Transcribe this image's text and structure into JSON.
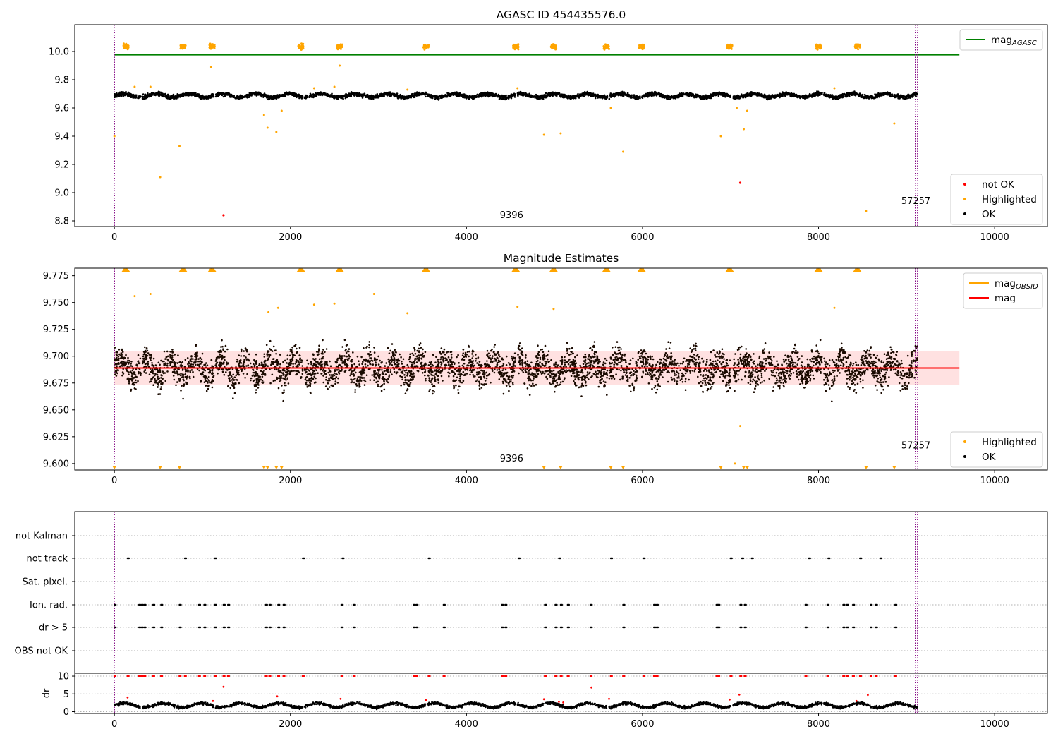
{
  "chart_data": [
    {
      "type": "scatter",
      "title": "AGASC ID 454435576.0",
      "xlim": [
        -450,
        10600
      ],
      "ylim": [
        8.76,
        10.19
      ],
      "x_ticks": [
        0,
        2000,
        4000,
        6000,
        8000,
        10000
      ],
      "x_tick_labels": [
        "0",
        "2000",
        "4000",
        "6000",
        "8000",
        "10000"
      ],
      "y_ticks": [
        8.8,
        9.0,
        9.2,
        9.4,
        9.6,
        9.8,
        10.0
      ],
      "y_tick_labels": [
        "8.8",
        "9.0",
        "9.2",
        "9.4",
        "9.6",
        "9.8",
        "10.0"
      ],
      "vlines": [
        0,
        9100,
        9125
      ],
      "annotations": [
        {
          "text": "9396",
          "x": 4380,
          "y": 8.82
        },
        {
          "text": "57257",
          "x": 8940,
          "y": 8.92
        }
      ],
      "hlines": [
        {
          "name": "mag_AGASC",
          "y": 9.977,
          "x0": 0,
          "x1": 9600,
          "color": "#008000"
        }
      ],
      "legend_upper": {
        "entries": [
          {
            "name": "mag",
            "sub": "AGASC",
            "color": "#008000"
          }
        ],
        "placement": "top-right"
      },
      "legend_lower": {
        "entries": [
          {
            "name": "not OK",
            "color": "#ff0000"
          },
          {
            "name": "Highlighted",
            "color": "#ffa500"
          },
          {
            "name": "OK",
            "color": "#000000"
          }
        ],
        "placement": "bottom-right"
      },
      "series": [
        {
          "name": "OK",
          "color": "#000000",
          "description_band": {
            "x0": 0,
            "x1": 9120,
            "center": 9.688,
            "spread": 0.018
          }
        },
        {
          "name": "Highlighted",
          "color": "#ffa500",
          "clusters_x": [
            130,
            780,
            1110,
            2120,
            2560,
            3540,
            4560,
            4990,
            5590,
            5990,
            6990,
            8000,
            8440
          ],
          "cluster_y": 10.035,
          "points": [
            [
              0,
              9.4
            ],
            [
              520,
              9.11
            ],
            [
              740,
              9.33
            ],
            [
              1100,
              9.89
            ],
            [
              2560,
              9.9
            ],
            [
              1700,
              9.55
            ],
            [
              1740,
              9.46
            ],
            [
              1840,
              9.43
            ],
            [
              1900,
              9.58
            ],
            [
              4880,
              9.41
            ],
            [
              5070,
              9.42
            ],
            [
              5640,
              9.6
            ],
            [
              5780,
              9.29
            ],
            [
              6890,
              9.4
            ],
            [
              7070,
              9.6
            ],
            [
              7150,
              9.45
            ],
            [
              7190,
              9.58
            ],
            [
              8540,
              8.87
            ],
            [
              8860,
              9.49
            ],
            [
              230,
              9.75
            ],
            [
              410,
              9.75
            ],
            [
              2270,
              9.74
            ],
            [
              2500,
              9.75
            ],
            [
              3330,
              9.73
            ],
            [
              4580,
              9.74
            ],
            [
              8180,
              9.74
            ]
          ]
        },
        {
          "name": "not OK",
          "color": "#ff0000",
          "points": [
            [
              1240,
              8.84
            ],
            [
              7110,
              9.07
            ]
          ]
        }
      ]
    },
    {
      "type": "scatter",
      "title": "Magnitude Estimates",
      "xlim": [
        -450,
        10600
      ],
      "ylim": [
        9.594,
        9.782
      ],
      "x_ticks": [
        0,
        2000,
        4000,
        6000,
        8000,
        10000
      ],
      "x_tick_labels": [
        "0",
        "2000",
        "4000",
        "6000",
        "8000",
        "10000"
      ],
      "y_ticks": [
        9.6,
        9.625,
        9.65,
        9.675,
        9.7,
        9.725,
        9.75,
        9.775
      ],
      "y_tick_labels": [
        "9.600",
        "9.625",
        "9.650",
        "9.675",
        "9.700",
        "9.725",
        "9.750",
        "9.775"
      ],
      "vlines": [
        0,
        9100,
        9125
      ],
      "annotations": [
        {
          "text": "9396",
          "x": 4380,
          "y": 9.602
        },
        {
          "text": "57257",
          "x": 8940,
          "y": 9.614
        }
      ],
      "hlines": [
        {
          "name": "mag",
          "y": 9.689,
          "x0": 0,
          "x1": 9600,
          "color": "#ff0000"
        }
      ],
      "band": {
        "y0": 9.673,
        "y1": 9.705,
        "x0": 0,
        "x1": 9600,
        "color": "#ffc8c8"
      },
      "legend_upper": {
        "entries": [
          {
            "name": "mag",
            "sub": "OBSID",
            "color": "#ffa500"
          },
          {
            "name": "mag",
            "sub": "",
            "color": "#ff0000"
          }
        ],
        "placement": "top-right"
      },
      "legend_lower": {
        "entries": [
          {
            "name": "Highlighted",
            "color": "#ffa500"
          },
          {
            "name": "OK",
            "color": "#000000"
          }
        ],
        "placement": "bottom-right"
      },
      "series": [
        {
          "name": "OK",
          "color": "#000000",
          "description_band": {
            "x0": 0,
            "x1": 9120,
            "center": 9.689,
            "spread": 0.017
          }
        },
        {
          "name": "Highlighted",
          "color": "#ffa500",
          "top_markers_x": [
            130,
            780,
            1110,
            2120,
            2560,
            3540,
            4560,
            4990,
            5590,
            5990,
            6990,
            8000,
            8440
          ],
          "bottom_markers_x": [
            0,
            520,
            740,
            1700,
            1740,
            1840,
            1900,
            4880,
            5070,
            5640,
            5780,
            6890,
            7150,
            7190,
            8540,
            8860
          ],
          "points": [
            [
              230,
              9.756
            ],
            [
              410,
              9.758
            ],
            [
              2270,
              9.748
            ],
            [
              2500,
              9.749
            ],
            [
              2950,
              9.758
            ],
            [
              3330,
              9.74
            ],
            [
              4580,
              9.746
            ],
            [
              4990,
              9.744
            ],
            [
              8180,
              9.745
            ],
            [
              1750,
              9.741
            ],
            [
              1860,
              9.745
            ],
            [
              7110,
              9.635
            ],
            [
              7050,
              9.6
            ]
          ]
        }
      ]
    },
    {
      "type": "scatter",
      "title": "",
      "xlim": [
        -450,
        10600
      ],
      "ylim": [
        -0.5,
        10.8
      ],
      "x_ticks": [
        0,
        2000,
        4000,
        6000,
        8000,
        10000
      ],
      "x_tick_labels": [
        "0",
        "2000",
        "4000",
        "6000",
        "8000",
        "10000"
      ],
      "y_ticks": [
        0,
        5,
        10
      ],
      "y_tick_labels": [
        "0",
        "5",
        "10"
      ],
      "ylabel": "dr",
      "vlines": [
        0,
        9100,
        9125
      ],
      "flag_rows": [
        "not Kalman",
        "not track",
        "Sat. pixel.",
        "Ion. rad.",
        "dr > 5",
        "OBS not OK"
      ],
      "flag_x": {
        "not Kalman": [],
        "not track": [
          150,
          800,
          1140,
          2140,
          2590,
          3570,
          4590,
          5050,
          5640,
          6010,
          7000,
          7130,
          7240,
          7890,
          8110,
          8470,
          8700
        ],
        "Sat. pixel.": [],
        "Ion. rad.": [
          0,
          280,
          310,
          340,
          440,
          530,
          740,
          960,
          1020,
          1140,
          1240,
          1290,
          1720,
          1760,
          1860,
          1920,
          2580,
          2720,
          3400,
          3430,
          3740,
          4400,
          4440,
          4890,
          5010,
          5070,
          5150,
          5410,
          5780,
          6130,
          6160,
          6840,
          6860,
          7110,
          7160,
          7850,
          8100,
          8280,
          8320,
          8390,
          8590,
          8650,
          8870
        ],
        "dr > 5": [
          0,
          280,
          310,
          340,
          440,
          530,
          740,
          960,
          1020,
          1140,
          1240,
          1290,
          1720,
          1760,
          1860,
          1920,
          2580,
          2720,
          3400,
          3430,
          3740,
          4400,
          4440,
          4890,
          5010,
          5070,
          5150,
          5410,
          5780,
          6130,
          6160,
          6840,
          6860,
          7110,
          7160,
          7850,
          8100,
          8280,
          8320,
          8390,
          8590,
          8650,
          8870
        ],
        "OBS not OK": []
      },
      "series": [
        {
          "name": "dr",
          "color": "#000000",
          "description": "dr values 1-3 across x 0-9120"
        },
        {
          "name": "dr outliers",
          "color": "#ff0000",
          "clip_y": 10,
          "clipped_x": [
            0,
            150,
            280,
            310,
            340,
            440,
            530,
            740,
            800,
            960,
            1020,
            1140,
            1240,
            1290,
            1720,
            1760,
            1860,
            1920,
            2140,
            2580,
            2720,
            3400,
            3430,
            3570,
            3740,
            4400,
            4440,
            4890,
            5010,
            5070,
            5150,
            5410,
            5640,
            5780,
            6010,
            6130,
            6160,
            6840,
            6860,
            7000,
            7110,
            7160,
            7850,
            8100,
            8280,
            8320,
            8390,
            8470,
            8590,
            8650,
            8870
          ],
          "points": [
            [
              1240,
              7.0
            ],
            [
              5420,
              6.8
            ],
            [
              7100,
              4.8
            ],
            [
              8560,
              4.7
            ],
            [
              1850,
              4.3
            ],
            [
              4880,
              3.5
            ],
            [
              150,
              4.0
            ],
            [
              2570,
              3.6
            ],
            [
              3540,
              3.2
            ],
            [
              5620,
              3.6
            ],
            [
              6990,
              3.4
            ],
            [
              8430,
              3.0
            ],
            [
              5050,
              2.8
            ],
            [
              5100,
              2.6
            ],
            [
              1120,
              3.0
            ]
          ]
        }
      ]
    }
  ]
}
